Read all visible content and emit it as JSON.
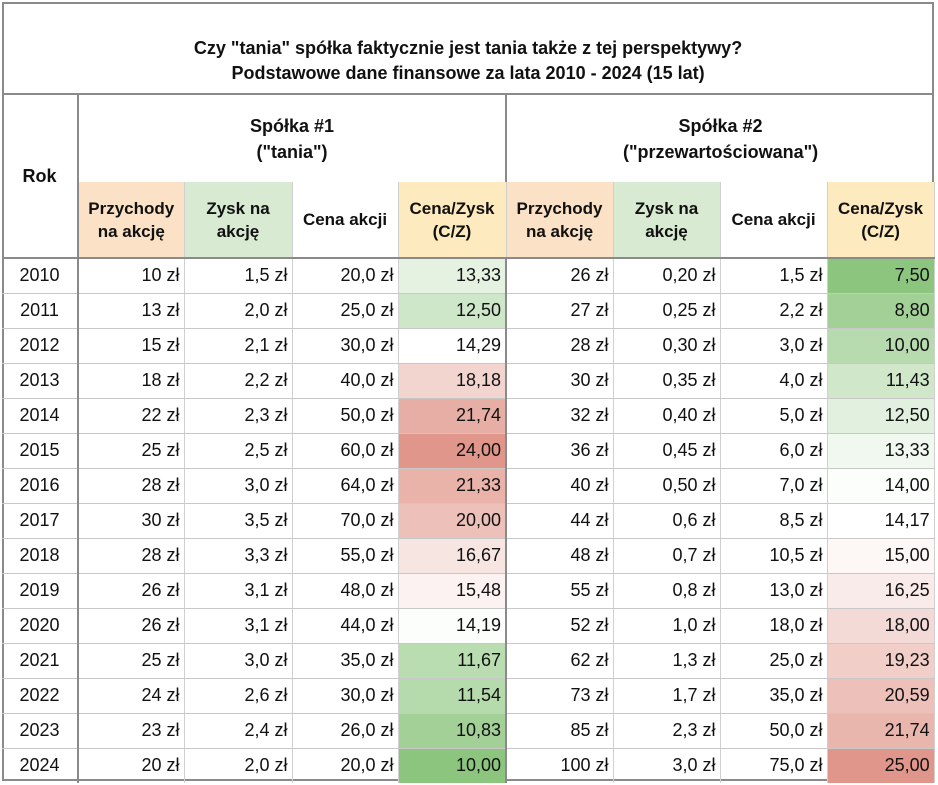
{
  "title": "Czy \"tania\" spółka faktycznie jest tania także z tej perspektywy?",
  "subtitle": "Podstawowe dane finansowe za lata 2010 - 2024 (15 lat)",
  "rok_label": "Rok",
  "company1": {
    "line1": "Spółka #1",
    "line2": "(\"tania\")"
  },
  "company2": {
    "line1": "Spółka #2",
    "line2": "(\"przewartościowana\")"
  },
  "columns": {
    "revenue": [
      "Przychody",
      "na akcję"
    ],
    "profit": [
      "Zysk na",
      "akcję"
    ],
    "price": "Cena akcji",
    "pe": [
      "Cena/Zysk",
      "(C/Z)"
    ]
  },
  "rows": [
    [
      "2010",
      "10 zł",
      "1,5 zł",
      "20,0 zł",
      "13,33",
      "26 zł",
      "0,20 zł",
      "1,5 zł",
      "7,50"
    ],
    [
      "2011",
      "13 zł",
      "2,0 zł",
      "25,0 zł",
      "12,50",
      "27 zł",
      "0,25 zł",
      "2,2 zł",
      "8,80"
    ],
    [
      "2012",
      "15 zł",
      "2,1 zł",
      "30,0 zł",
      "14,29",
      "28 zł",
      "0,30 zł",
      "3,0 zł",
      "10,00"
    ],
    [
      "2013",
      "18 zł",
      "2,2 zł",
      "40,0 zł",
      "18,18",
      "30 zł",
      "0,35 zł",
      "4,0 zł",
      "11,43"
    ],
    [
      "2014",
      "22 zł",
      "2,3 zł",
      "50,0 zł",
      "21,74",
      "32 zł",
      "0,40 zł",
      "5,0 zł",
      "12,50"
    ],
    [
      "2015",
      "25 zł",
      "2,5 zł",
      "60,0 zł",
      "24,00",
      "36 zł",
      "0,45 zł",
      "6,0 zł",
      "13,33"
    ],
    [
      "2016",
      "28 zł",
      "3,0 zł",
      "64,0 zł",
      "21,33",
      "40 zł",
      "0,50 zł",
      "7,0 zł",
      "14,00"
    ],
    [
      "2017",
      "30 zł",
      "3,5 zł",
      "70,0 zł",
      "20,00",
      "44 zł",
      "0,6 zł",
      "8,5 zł",
      "14,17"
    ],
    [
      "2018",
      "28 zł",
      "3,3 zł",
      "55,0 zł",
      "16,67",
      "48 zł",
      "0,7 zł",
      "10,5 zł",
      "15,00"
    ],
    [
      "2019",
      "26 zł",
      "3,1 zł",
      "48,0 zł",
      "15,48",
      "55 zł",
      "0,8 zł",
      "13,0 zł",
      "16,25"
    ],
    [
      "2020",
      "26 zł",
      "3,1 zł",
      "44,0 zł",
      "14,19",
      "52 zł",
      "1,0 zł",
      "18,0 zł",
      "18,00"
    ],
    [
      "2021",
      "25 zł",
      "3,0 zł",
      "35,0 zł",
      "11,67",
      "62 zł",
      "1,3 zł",
      "25,0 zł",
      "19,23"
    ],
    [
      "2022",
      "24 zł",
      "2,6 zł",
      "30,0 zł",
      "11,54",
      "73 zł",
      "1,7 zł",
      "35,0 zł",
      "20,59"
    ],
    [
      "2023",
      "23 zł",
      "2,4 zł",
      "26,0 zł",
      "10,83",
      "85 zł",
      "2,3 zł",
      "50,0 zł",
      "21,74"
    ],
    [
      "2024",
      "20 zł",
      "2,0 zł",
      "20,0 zł",
      "10,00",
      "100 zł",
      "3,0 zł",
      "75,0 zł",
      "25,00"
    ]
  ],
  "colors": {
    "pe_low": "#8cc57e",
    "pe_mid": "#ffffff",
    "pe_high": "#e0968a"
  }
}
